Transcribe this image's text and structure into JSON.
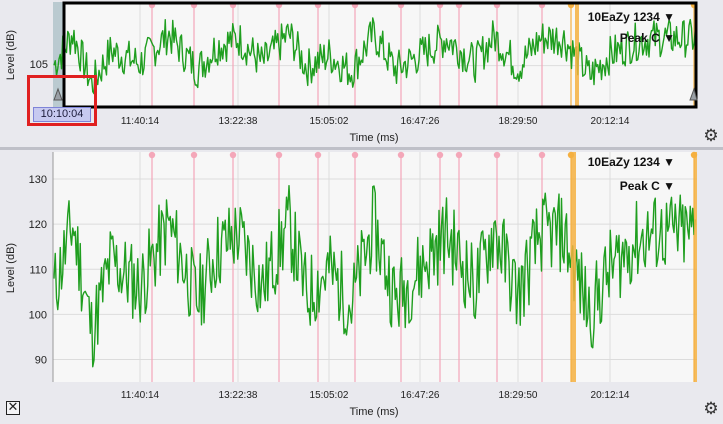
{
  "overview": {
    "y_axis_label": "Level (dB)",
    "x_axis_label": "Time (ms)",
    "y_ticks": [
      "105"
    ],
    "x_ticks": [
      "11:40:14",
      "13:22:38",
      "15:05:02",
      "16:47:26",
      "18:29:50",
      "20:12:14"
    ],
    "channel_label": "10EaZy 1234 ▼",
    "metric_label": "Peak C ▼",
    "cursor_time": "10:10:04",
    "settings_icon": "gear-icon"
  },
  "main": {
    "y_axis_label": "Level (dB)",
    "x_axis_label": "Time (ms)",
    "y_ticks": [
      "130",
      "120",
      "110",
      "100",
      "90"
    ],
    "x_ticks": [
      "11:40:14",
      "13:22:38",
      "15:05:02",
      "16:47:26",
      "18:29:50",
      "20:12:14"
    ],
    "channel_label": "10EaZy 1234 ▼",
    "metric_label": "Peak C ▼",
    "settings_icon": "gear-icon",
    "close_icon": "close-box-icon"
  },
  "colors": {
    "trace": "#1f9e1f",
    "marker": "#f4a7b9",
    "highlight": "#f5b041",
    "plot_bg": "#f7f7f7",
    "selection": "#e02020"
  },
  "chart_data": [
    {
      "type": "line",
      "xlabel": "Time (ms)",
      "ylabel": "Level (dB)",
      "x_ticks": [
        "11:40:14",
        "13:22:38",
        "15:05:02",
        "16:47:26",
        "18:29:50",
        "20:12:14"
      ],
      "ylim": [
        85,
        135
      ],
      "series": [
        {
          "x": [
            "10:10:04",
            "10:30:00",
            "10:50:00",
            "11:10:00",
            "11:40:14",
            "12:10:00",
            "12:40:00",
            "13:00:00",
            "13:22:38",
            "13:50:00",
            "14:20:00",
            "14:40:00",
            "15:05:02",
            "15:30:00",
            "15:55:00",
            "16:20:00",
            "16:47:26",
            "17:15:00",
            "17:45:00",
            "18:05:00",
            "18:29:50",
            "18:55:00",
            "19:20:00",
            "19:50:00",
            "20:12:14",
            "20:40:00",
            "21:00:00"
          ],
          "values": [
            105,
            120,
            96,
            112,
            106,
            120,
            103,
            114,
            118,
            106,
            120,
            104,
            110,
            102,
            120,
            103,
            110,
            118,
            106,
            119,
            104,
            118,
            118,
            100,
            110,
            116,
            118
          ]
        }
      ]
    },
    {
      "type": "line",
      "xlabel": "Time (ms)",
      "ylabel": "Level (dB)",
      "x_ticks": [
        "11:40:14",
        "13:22:38",
        "15:05:02",
        "16:47:26",
        "18:29:50",
        "20:12:14"
      ],
      "y_ticks": [
        90,
        100,
        110,
        120,
        130
      ],
      "ylim": [
        85,
        136
      ],
      "series": [
        {
          "x": [
            "10:10:04",
            "10:30:00",
            "10:50:00",
            "11:10:00",
            "11:40:14",
            "12:10:00",
            "12:40:00",
            "13:00:00",
            "13:22:38",
            "13:50:00",
            "14:20:00",
            "14:40:00",
            "15:05:02",
            "15:30:00",
            "15:55:00",
            "16:20:00",
            "16:47:26",
            "17:15:00",
            "17:45:00",
            "18:05:00",
            "18:29:50",
            "18:55:00",
            "19:20:00",
            "19:50:00",
            "20:12:14",
            "20:40:00",
            "21:00:00"
          ],
          "values": [
            105,
            120,
            96,
            112,
            106,
            120,
            103,
            114,
            118,
            106,
            120,
            104,
            110,
            102,
            120,
            103,
            110,
            118,
            106,
            119,
            104,
            118,
            118,
            100,
            110,
            116,
            118
          ]
        }
      ]
    }
  ]
}
